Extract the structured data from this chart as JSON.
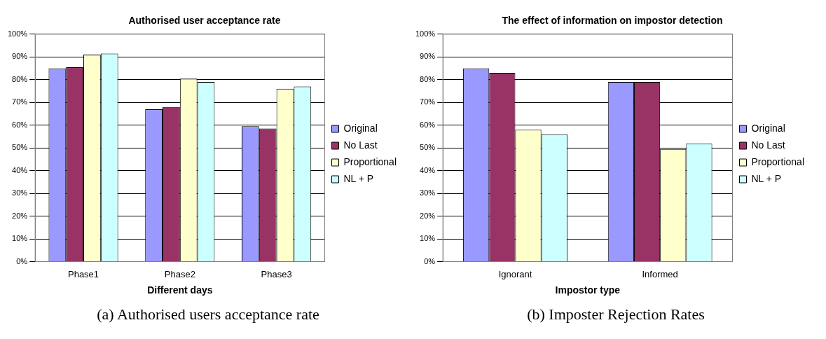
{
  "chart_data": [
    {
      "type": "bar",
      "title": "Authorised user acceptance rate",
      "xlabel": "Different days",
      "categories": [
        "Phase1",
        "Phase2",
        "Phase3"
      ],
      "series": [
        {
          "name": "Original",
          "color": "#9999ff",
          "values": [
            85,
            67,
            59.5
          ]
        },
        {
          "name": "No Last",
          "color": "#993366",
          "values": [
            85.5,
            68,
            58.5
          ]
        },
        {
          "name": "Proportional",
          "color": "#ffffcc",
          "values": [
            91,
            80.5,
            76
          ]
        },
        {
          "name": "NL + P",
          "color": "#ccffff",
          "values": [
            91.5,
            79,
            77
          ]
        }
      ],
      "ylim": [
        0,
        100
      ],
      "yticks": [
        {
          "value": 0,
          "label": "0%"
        },
        {
          "value": 10,
          "label": "10%"
        },
        {
          "value": 20,
          "label": "20%"
        },
        {
          "value": 30,
          "label": "30%"
        },
        {
          "value": 40,
          "label": "40%"
        },
        {
          "value": 50,
          "label": "50%"
        },
        {
          "value": 60,
          "label": "60%"
        },
        {
          "value": 70,
          "label": "70%"
        },
        {
          "value": 80,
          "label": "80%"
        },
        {
          "value": 90,
          "label": "90%"
        },
        {
          "value": 100,
          "label": "100%"
        }
      ],
      "grid": "y",
      "legend": "right",
      "annotations": [
        "(a) Authorised users acceptance rate"
      ]
    },
    {
      "type": "bar",
      "title": "The effect of information on impostor detection",
      "xlabel": "Impostor type",
      "categories": [
        "Ignorant",
        "Informed"
      ],
      "series": [
        {
          "name": "Original",
          "color": "#9999ff",
          "values": [
            85,
            79
          ]
        },
        {
          "name": "No Last",
          "color": "#993366",
          "values": [
            83,
            79
          ]
        },
        {
          "name": "Proportional",
          "color": "#ffffcc",
          "values": [
            58,
            49.5
          ]
        },
        {
          "name": "NL + P",
          "color": "#ccffff",
          "values": [
            56,
            52
          ]
        }
      ],
      "ylim": [
        0,
        100
      ],
      "yticks": [
        {
          "value": 0,
          "label": "0%"
        },
        {
          "value": 10,
          "label": "10%"
        },
        {
          "value": 20,
          "label": "20%"
        },
        {
          "value": 30,
          "label": "30%"
        },
        {
          "value": 40,
          "label": "40%"
        },
        {
          "value": 50,
          "label": "50%"
        },
        {
          "value": 60,
          "label": "60%"
        },
        {
          "value": 70,
          "label": "70%"
        },
        {
          "value": 80,
          "label": "80%"
        },
        {
          "value": 90,
          "label": "90%"
        },
        {
          "value": 100,
          "label": "100%"
        }
      ],
      "grid": "y",
      "legend": "right",
      "annotations": [
        "(b) Imposter Rejection Rates"
      ]
    }
  ]
}
